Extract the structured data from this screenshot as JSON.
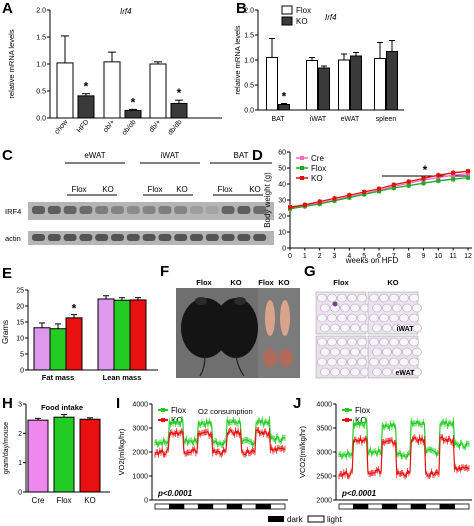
{
  "figure": {
    "legend_dark": "dark",
    "legend_light": "light"
  },
  "chart_data": [
    {
      "id": "A",
      "type": "bar",
      "panel_label": "A",
      "title": "Irf4",
      "ylabel": "relative mRNA levels",
      "ylim": [
        0,
        2.0
      ],
      "yticks": [
        "0.0",
        "0.5",
        "1.0",
        "1.5",
        "2.0"
      ],
      "categories": [
        "chow",
        "HFD",
        "ob/+",
        "ob/ob",
        "db/+",
        "db/db"
      ],
      "values": [
        1.02,
        0.41,
        1.04,
        0.14,
        1.0,
        0.27
      ],
      "errors": [
        0.5,
        0.04,
        0.18,
        0.02,
        0.04,
        0.06
      ],
      "fills": [
        "#ffffff",
        "#3a3a3a",
        "#ffffff",
        "#3a3a3a",
        "#ffffff",
        "#3a3a3a"
      ],
      "significance": [
        "",
        "*",
        "",
        "*",
        "",
        "*"
      ]
    },
    {
      "id": "B",
      "type": "bar",
      "panel_label": "B",
      "title": "Irf4",
      "ylabel": "relative mRNA levels",
      "ylim": [
        0,
        2.0
      ],
      "yticks": [
        "0.0",
        "0.5",
        "1.0",
        "1.5",
        "2.0"
      ],
      "categories": [
        "BAT",
        "iWAT",
        "eWAT",
        "spleen"
      ],
      "series": [
        {
          "name": "Flox",
          "values": [
            1.05,
            0.99,
            1.0,
            1.03
          ],
          "errors": [
            0.38,
            0.06,
            0.12,
            0.32
          ],
          "color": "#ffffff"
        },
        {
          "name": "KO",
          "values": [
            0.11,
            0.84,
            1.08,
            1.17
          ],
          "errors": [
            0.02,
            0.04,
            0.07,
            0.22
          ],
          "color": "#3a3a3a"
        }
      ],
      "significance": [
        "*",
        "",
        "",
        ""
      ],
      "legend_position": "top-left"
    },
    {
      "id": "C",
      "type": "blot",
      "panel_label": "C",
      "groups": [
        "eWAT",
        "iWAT",
        "BAT"
      ],
      "lane_labels": [
        "Flox",
        "KO",
        "Flox",
        "KO",
        "Flox",
        "KO"
      ],
      "rows": [
        "IRF4",
        "actin"
      ]
    },
    {
      "id": "D",
      "type": "line",
      "panel_label": "D",
      "ylabel": "Body weight (g)",
      "xlabel": "weeks on HFD",
      "xlim": [
        0,
        12
      ],
      "ylim": [
        0,
        60
      ],
      "xticks": [
        0,
        1,
        2,
        3,
        4,
        5,
        6,
        7,
        8,
        9,
        10,
        11,
        12
      ],
      "yticks": [
        0,
        10,
        20,
        30,
        40,
        50,
        60
      ],
      "x": [
        0,
        1,
        2,
        3,
        4,
        5,
        6,
        7,
        8,
        9,
        10,
        11,
        12
      ],
      "series": [
        {
          "name": "Cre",
          "color": "#ff66cc",
          "values": [
            25,
            26.5,
            28,
            30,
            32,
            34,
            36,
            38.5,
            40.5,
            42.5,
            44,
            45.5,
            46.5
          ]
        },
        {
          "name": "Flox",
          "color": "#22a822",
          "values": [
            24.5,
            26,
            27.5,
            29.5,
            31.5,
            33.5,
            35.5,
            37.5,
            39,
            40.5,
            42,
            43,
            44
          ]
        },
        {
          "name": "KO",
          "color": "#e01010",
          "values": [
            25.5,
            27,
            29,
            31,
            33,
            35,
            37,
            39.5,
            41.5,
            43.5,
            45.5,
            47,
            48
          ]
        }
      ],
      "annotation": "*",
      "legend_position": "top-left"
    },
    {
      "id": "E",
      "type": "bar",
      "panel_label": "E",
      "ylabel": "Grams",
      "ylim": [
        0,
        25
      ],
      "yticks": [
        0,
        5,
        10,
        15,
        20,
        25
      ],
      "categories": [
        "Fat mass",
        "Lean mass"
      ],
      "series": [
        {
          "name": "Cre",
          "color": "#dd99ee",
          "values": [
            13.2,
            22.2
          ],
          "errors": [
            1.5,
            1.0
          ]
        },
        {
          "name": "Flox",
          "color": "#22cc22",
          "values": [
            12.9,
            21.8
          ],
          "errors": [
            1.5,
            0.8
          ]
        },
        {
          "name": "KO",
          "color": "#e81010",
          "values": [
            16.3,
            21.9
          ],
          "errors": [
            1.0,
            0.7
          ]
        }
      ],
      "significance": [
        "*",
        ""
      ]
    },
    {
      "id": "F",
      "type": "photo",
      "panel_label": "F",
      "labels": [
        "Flox",
        "KO",
        "Flox",
        "KO"
      ]
    },
    {
      "id": "G",
      "type": "photo",
      "panel_label": "G",
      "labels": [
        "Flox",
        "KO",
        "iWAT",
        "eWAT"
      ]
    },
    {
      "id": "H",
      "type": "bar",
      "panel_label": "H",
      "title": "Food intake",
      "ylabel": "gram/day/mouse",
      "ylim": [
        0,
        3
      ],
      "yticks": [
        0,
        1,
        2,
        3
      ],
      "categories": [
        "Cre",
        "Flox",
        "KO"
      ],
      "values": [
        2.45,
        2.55,
        2.48
      ],
      "errors": [
        0.06,
        0.09,
        0.05
      ],
      "fills": [
        "#ee88ee",
        "#22cc22",
        "#e81010"
      ]
    },
    {
      "id": "I",
      "type": "line",
      "panel_label": "I",
      "title": "O2 consumption",
      "ylabel": "VO2(ml/kg/hr)",
      "ylim": [
        0,
        4000
      ],
      "yticks": [
        0,
        1000,
        2000,
        3000,
        4000
      ],
      "xticks": [],
      "annotation": "p<0.0001",
      "series": [
        {
          "name": "Flox",
          "color": "#22cc22",
          "cycles": [
            {
              "light": 2400,
              "dark": 3250
            },
            {
              "light": 2450,
              "dark": 3200
            },
            {
              "light": 2400,
              "dark": 3250
            },
            {
              "light": 2400,
              "dark": 3250
            }
          ],
          "final_light": 2550
        },
        {
          "name": "KO",
          "color": "#e81010",
          "cycles": [
            {
              "light": 2000,
              "dark": 2800
            },
            {
              "light": 2050,
              "dark": 2750
            },
            {
              "light": 2000,
              "dark": 2800
            },
            {
              "light": 2000,
              "dark": 2800
            }
          ],
          "final_light": 2100
        }
      ],
      "legend_position": "top-left"
    },
    {
      "id": "J",
      "type": "line",
      "panel_label": "J",
      "ylabel": "VCO2(ml/kg/hr)",
      "ylim": [
        2000,
        4000
      ],
      "yticks": [
        2000,
        2500,
        3000,
        3500,
        4000
      ],
      "xticks": [],
      "annotation": "p<0.0001",
      "series": [
        {
          "name": "Flox",
          "color": "#22cc22",
          "cycles": [
            {
              "light": 2950,
              "dark": 3600
            },
            {
              "light": 3000,
              "dark": 3550
            },
            {
              "light": 2950,
              "dark": 3600
            },
            {
              "light": 3000,
              "dark": 3600
            }
          ],
          "final_light": 3150
        },
        {
          "name": "KO",
          "color": "#e81010",
          "cycles": [
            {
              "light": 2550,
              "dark": 3250
            },
            {
              "light": 2600,
              "dark": 3200
            },
            {
              "light": 2550,
              "dark": 3250
            },
            {
              "light": 2550,
              "dark": 3250
            }
          ],
          "final_light": 2650
        }
      ],
      "legend_position": "top-left"
    }
  ]
}
